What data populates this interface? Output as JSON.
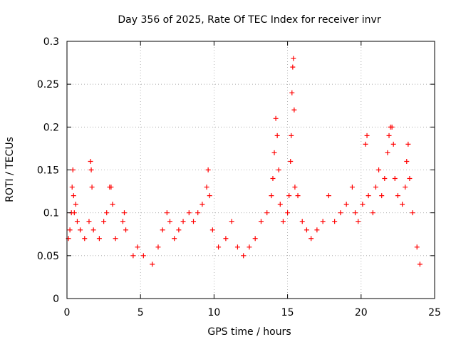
{
  "chart_data": {
    "type": "scatter",
    "title": "Day 356 of 2025, Rate Of TEC Index for receiver invr",
    "xlabel": "GPS time / hours",
    "ylabel": "ROTI / TECUs",
    "xlim": [
      0,
      25
    ],
    "ylim": [
      0,
      0.3
    ],
    "xticks": [
      0,
      5,
      10,
      15,
      20,
      25
    ],
    "xtick_labels": [
      "0",
      "5",
      "10",
      "15",
      "20",
      "25"
    ],
    "yticks": [
      0,
      0.05,
      0.1,
      0.15,
      0.2,
      0.25,
      0.3
    ],
    "ytick_labels": [
      "0",
      "0.05",
      "0.1",
      "0.15",
      "0.2",
      "0.25",
      "0.3"
    ],
    "grid": true,
    "marker": "+",
    "series": [
      {
        "name": "ROTI",
        "color": "#ff0000",
        "points": [
          [
            0.1,
            0.07
          ],
          [
            0.2,
            0.08
          ],
          [
            0.3,
            0.1
          ],
          [
            0.35,
            0.13
          ],
          [
            0.4,
            0.15
          ],
          [
            0.45,
            0.12
          ],
          [
            0.5,
            0.1
          ],
          [
            0.6,
            0.11
          ],
          [
            0.7,
            0.09
          ],
          [
            0.9,
            0.08
          ],
          [
            1.2,
            0.07
          ],
          [
            1.5,
            0.09
          ],
          [
            1.6,
            0.16
          ],
          [
            1.65,
            0.15
          ],
          [
            1.7,
            0.13
          ],
          [
            1.8,
            0.08
          ],
          [
            2.2,
            0.07
          ],
          [
            2.5,
            0.09
          ],
          [
            2.7,
            0.1
          ],
          [
            2.9,
            0.13
          ],
          [
            3.0,
            0.13
          ],
          [
            3.1,
            0.11
          ],
          [
            3.3,
            0.07
          ],
          [
            3.8,
            0.09
          ],
          [
            3.9,
            0.1
          ],
          [
            4.0,
            0.08
          ],
          [
            4.5,
            0.05
          ],
          [
            4.8,
            0.06
          ],
          [
            5.2,
            0.05
          ],
          [
            5.8,
            0.04
          ],
          [
            6.2,
            0.06
          ],
          [
            6.5,
            0.08
          ],
          [
            6.8,
            0.1
          ],
          [
            7.0,
            0.09
          ],
          [
            7.3,
            0.07
          ],
          [
            7.6,
            0.08
          ],
          [
            7.9,
            0.09
          ],
          [
            8.3,
            0.1
          ],
          [
            8.6,
            0.09
          ],
          [
            8.9,
            0.1
          ],
          [
            9.2,
            0.11
          ],
          [
            9.5,
            0.13
          ],
          [
            9.6,
            0.15
          ],
          [
            9.7,
            0.12
          ],
          [
            9.9,
            0.08
          ],
          [
            10.3,
            0.06
          ],
          [
            10.8,
            0.07
          ],
          [
            11.2,
            0.09
          ],
          [
            11.6,
            0.06
          ],
          [
            12.0,
            0.05
          ],
          [
            12.4,
            0.06
          ],
          [
            12.8,
            0.07
          ],
          [
            13.2,
            0.09
          ],
          [
            13.6,
            0.1
          ],
          [
            13.9,
            0.12
          ],
          [
            14.0,
            0.14
          ],
          [
            14.1,
            0.17
          ],
          [
            14.2,
            0.21
          ],
          [
            14.3,
            0.19
          ],
          [
            14.4,
            0.15
          ],
          [
            14.5,
            0.11
          ],
          [
            14.7,
            0.09
          ],
          [
            15.0,
            0.1
          ],
          [
            15.1,
            0.12
          ],
          [
            15.2,
            0.16
          ],
          [
            15.25,
            0.19
          ],
          [
            15.3,
            0.24
          ],
          [
            15.35,
            0.27
          ],
          [
            15.4,
            0.28
          ],
          [
            15.45,
            0.22
          ],
          [
            15.5,
            0.13
          ],
          [
            15.7,
            0.12
          ],
          [
            16.0,
            0.09
          ],
          [
            16.3,
            0.08
          ],
          [
            16.6,
            0.07
          ],
          [
            17.0,
            0.08
          ],
          [
            17.4,
            0.09
          ],
          [
            17.8,
            0.12
          ],
          [
            18.2,
            0.09
          ],
          [
            18.6,
            0.1
          ],
          [
            19.0,
            0.11
          ],
          [
            19.4,
            0.13
          ],
          [
            19.6,
            0.1
          ],
          [
            19.8,
            0.09
          ],
          [
            20.1,
            0.11
          ],
          [
            20.3,
            0.18
          ],
          [
            20.4,
            0.19
          ],
          [
            20.5,
            0.12
          ],
          [
            20.8,
            0.1
          ],
          [
            21.0,
            0.13
          ],
          [
            21.2,
            0.15
          ],
          [
            21.4,
            0.12
          ],
          [
            21.6,
            0.14
          ],
          [
            21.8,
            0.17
          ],
          [
            21.9,
            0.19
          ],
          [
            22.0,
            0.2
          ],
          [
            22.1,
            0.2
          ],
          [
            22.2,
            0.18
          ],
          [
            22.3,
            0.14
          ],
          [
            22.5,
            0.12
          ],
          [
            22.8,
            0.11
          ],
          [
            23.0,
            0.13
          ],
          [
            23.1,
            0.16
          ],
          [
            23.2,
            0.18
          ],
          [
            23.3,
            0.14
          ],
          [
            23.5,
            0.1
          ],
          [
            23.8,
            0.06
          ],
          [
            24.0,
            0.04
          ]
        ]
      }
    ]
  }
}
